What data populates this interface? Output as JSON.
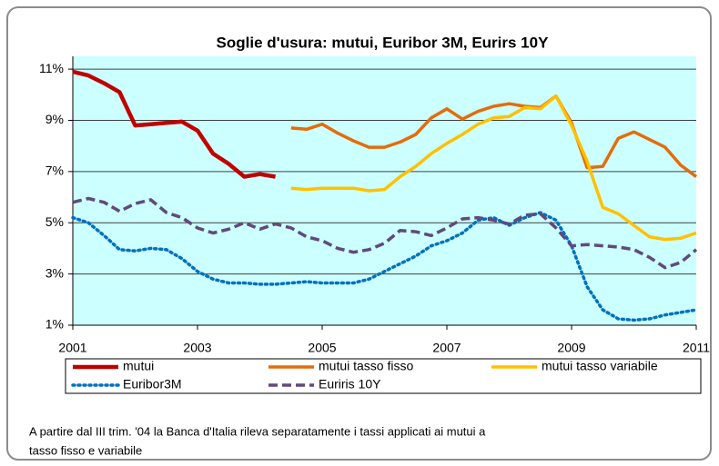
{
  "chart_data": {
    "type": "line",
    "title": "Soglie d'usura: mutui, Euribor 3M, Eurirs 10Y",
    "x": [
      2001,
      2001.25,
      2001.5,
      2001.75,
      2002,
      2002.25,
      2002.5,
      2002.75,
      2003,
      2003.25,
      2003.5,
      2003.75,
      2004,
      2004.25,
      2004.5,
      2004.75,
      2005,
      2005.25,
      2005.5,
      2005.75,
      2006,
      2006.25,
      2006.5,
      2006.75,
      2007,
      2007.25,
      2007.5,
      2007.75,
      2008,
      2008.25,
      2008.5,
      2008.75,
      2009,
      2009.25,
      2009.5,
      2009.75,
      2010,
      2010.25,
      2010.5,
      2010.75,
      2011
    ],
    "series": [
      {
        "name": "mutui",
        "color": "#c00000",
        "style": "solid",
        "values": [
          10.9,
          10.75,
          10.45,
          10.1,
          8.8,
          8.85,
          8.9,
          8.95,
          8.6,
          7.7,
          7.3,
          6.8,
          6.9,
          6.8,
          null,
          null,
          null,
          null,
          null,
          null,
          null,
          null,
          null,
          null,
          null,
          null,
          null,
          null,
          null,
          null,
          null,
          null,
          null,
          null,
          null,
          null,
          null,
          null,
          null,
          null,
          null
        ]
      },
      {
        "name": "mutui tasso fisso",
        "color": "#e46c0a",
        "style": "solid",
        "values": [
          null,
          null,
          null,
          null,
          null,
          null,
          null,
          null,
          null,
          null,
          null,
          null,
          null,
          null,
          8.7,
          8.65,
          8.85,
          8.5,
          8.2,
          7.95,
          7.95,
          8.15,
          8.45,
          9.1,
          9.45,
          9.05,
          9.35,
          9.55,
          9.65,
          9.55,
          9.5,
          9.95,
          8.9,
          7.15,
          7.2,
          8.3,
          8.55,
          8.25,
          7.95,
          7.25,
          6.8
        ]
      },
      {
        "name": "mutui tasso variabile",
        "color": "#ffc000",
        "style": "solid",
        "values": [
          null,
          null,
          null,
          null,
          null,
          null,
          null,
          null,
          null,
          null,
          null,
          null,
          null,
          null,
          6.35,
          6.3,
          6.35,
          6.35,
          6.35,
          6.25,
          6.3,
          6.8,
          7.2,
          7.7,
          8.1,
          8.45,
          8.85,
          9.1,
          9.15,
          9.5,
          9.45,
          9.95,
          8.8,
          7.4,
          5.6,
          5.35,
          4.9,
          4.45,
          4.35,
          4.4,
          4.6
        ]
      },
      {
        "name": "Euribor3M",
        "color": "#0070c0",
        "style": "dotted",
        "values": [
          5.2,
          5.0,
          4.5,
          3.95,
          3.9,
          4.0,
          3.95,
          3.6,
          3.1,
          2.8,
          2.65,
          2.65,
          2.6,
          2.6,
          2.65,
          2.7,
          2.65,
          2.65,
          2.65,
          2.8,
          3.1,
          3.4,
          3.7,
          4.1,
          4.3,
          4.6,
          5.1,
          5.2,
          4.9,
          5.2,
          5.4,
          5.1,
          4.1,
          2.5,
          1.6,
          1.25,
          1.2,
          1.25,
          1.4,
          1.5,
          1.6
        ]
      },
      {
        "name": "Euriris 10Y",
        "color": "#604a7b",
        "style": "dashed",
        "values": [
          5.8,
          5.95,
          5.8,
          5.45,
          5.75,
          5.9,
          5.4,
          5.2,
          4.8,
          4.6,
          4.75,
          5.0,
          4.75,
          4.95,
          4.8,
          4.45,
          4.3,
          4.0,
          3.85,
          3.95,
          4.2,
          4.7,
          4.65,
          4.5,
          4.8,
          5.15,
          5.2,
          5.1,
          4.95,
          5.3,
          5.35,
          4.8,
          4.1,
          4.15,
          4.1,
          4.05,
          3.95,
          3.65,
          3.25,
          3.45,
          3.95
        ]
      }
    ],
    "xlim": [
      2001,
      2011
    ],
    "xticks": [
      2001,
      2003,
      2005,
      2007,
      2009,
      2011
    ],
    "ylim": [
      1,
      11.5
    ],
    "yticks": [
      {
        "value": 1,
        "label": "1%"
      },
      {
        "value": 3,
        "label": "3%"
      },
      {
        "value": 5,
        "label": "5%"
      },
      {
        "value": 7,
        "label": "7%"
      },
      {
        "value": 9,
        "label": "9%"
      },
      {
        "value": 11,
        "label": "11%"
      }
    ],
    "grid": true,
    "background": "#ccffff",
    "legend": "bottom",
    "note": [
      "A partire dal III trim. '04 la Banca d'Italia rileva separatamente i tassi applicati ai mutui a",
      "tasso fisso e variabile"
    ]
  }
}
